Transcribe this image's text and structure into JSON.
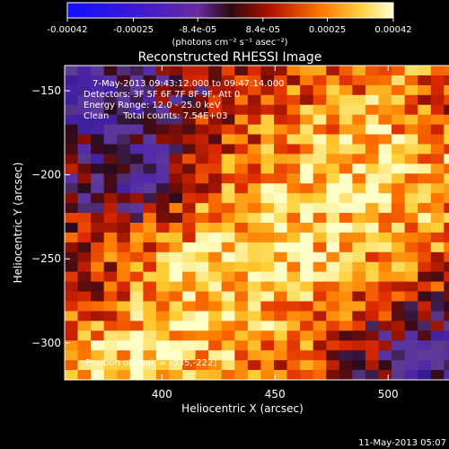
{
  "chart_data": {
    "type": "heatmap",
    "title": "Reconstructed RHESSI Image",
    "xlabel": "Heliocentric X (arcsec)",
    "ylabel": "Heliocentric Y (arcsec)",
    "xlim": [
      357,
      542
    ],
    "ylim": [
      -322,
      -135
    ],
    "xticks": [
      400,
      450,
      500
    ],
    "yticks": [
      -300,
      -250,
      -200,
      -150
    ],
    "colorbar": {
      "range": [
        -0.00042,
        0.00042
      ],
      "ticks": [
        "-0.00042",
        "-0.00025",
        "-8.4e-05",
        "8.4e-05",
        "0.00025",
        "0.00042"
      ],
      "unit_label": "(photons cm⁻² s⁻¹ asec⁻²)"
    },
    "annotations": [
      "7-May-2013 09:43:12.000 to 09:47:14.000",
      "Detectors: 3F 5F 6F 7F 8F 9F, Att 0",
      "Energy Range: 12.0 - 25.0 keV",
      "Clean     Total counts: 7.54E+03"
    ],
    "peak_label": "Position of Peak = [535,-222]",
    "peak": [
      535,
      -222
    ],
    "timestamp": "11-May-2013 05:07",
    "intensity_grid_rows": 32,
    "intensity_grid_cols": 32
  }
}
